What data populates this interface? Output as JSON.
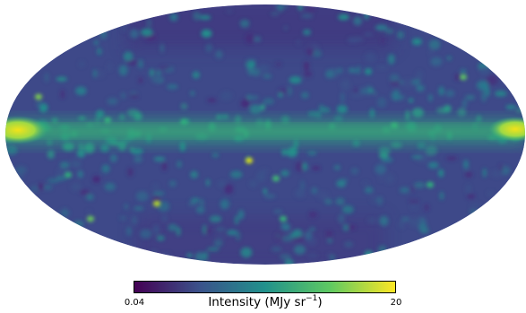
{
  "image": {
    "projection": "mollweide",
    "colormap": "viridis",
    "colors": [
      "#440154",
      "#3b528b",
      "#21918c",
      "#5ec962",
      "#fde725"
    ]
  },
  "colorbar": {
    "label_text": "Intensity (MJy sr",
    "label_exponent": "−1",
    "label_close": ")",
    "tick_min": "0.04",
    "tick_max": "20"
  }
}
